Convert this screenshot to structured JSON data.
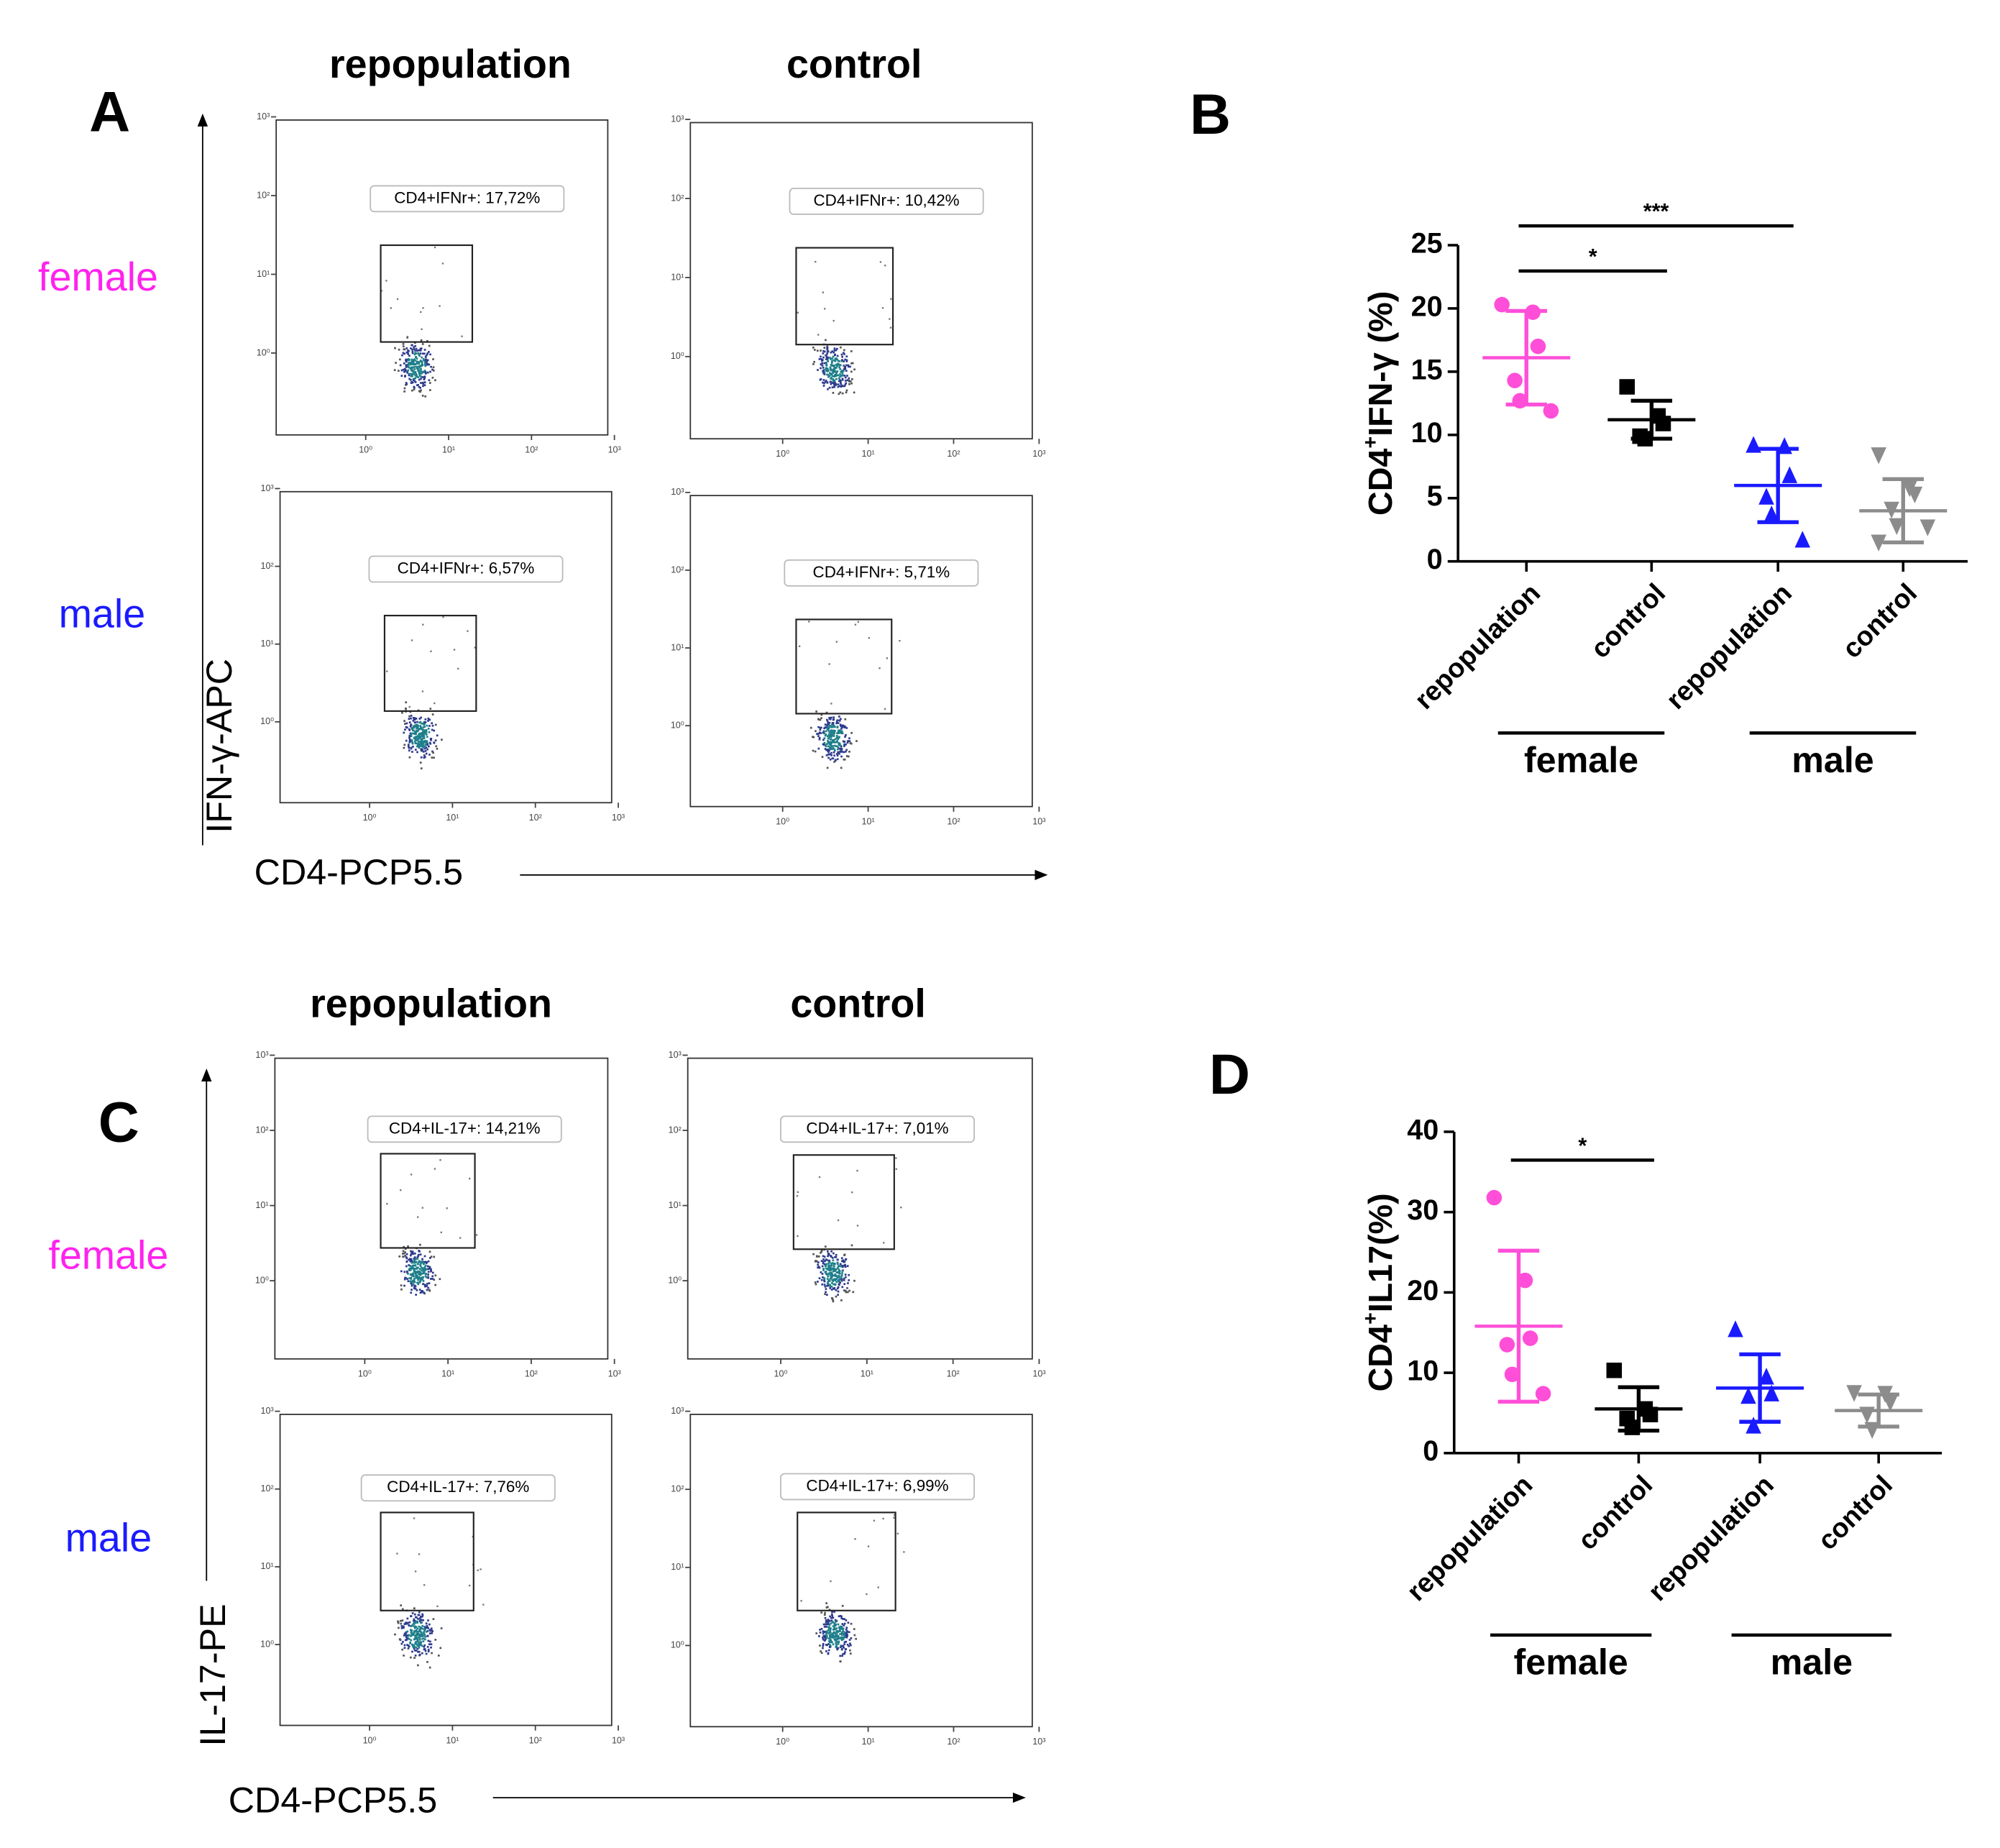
{
  "flow_panels": [
    {
      "letter": "A",
      "col_titles": [
        "repopulation",
        "control"
      ],
      "row_labels": [
        "female",
        "male"
      ],
      "row_colors": [
        "#ff22ee",
        "#1a1aff"
      ],
      "y_axis": "IFN-γ-APC",
      "x_axis": "CD4-PCP5.5",
      "gates": [
        [
          "CD4+IFNr+: 17,72%",
          "CD4+IFNr+: 10,42%"
        ],
        [
          "CD4+IFNr+: 6,57%",
          "CD4+IFNr+: 5,71%"
        ]
      ],
      "log_ticks": [
        "10⁰",
        "10¹",
        "10²",
        "10³"
      ]
    },
    {
      "letter": "C",
      "col_titles": [
        "repopulation",
        "control"
      ],
      "row_labels": [
        "female",
        "male"
      ],
      "row_colors": [
        "#ff22ee",
        "#1a1aff"
      ],
      "y_axis": "IL-17-PE",
      "x_axis": "CD4-PCP5.5",
      "gates": [
        [
          "CD4+IL-17+: 14,21%",
          "CD4+IL-17+: 7,01%"
        ],
        [
          "CD4+IL-17+: 7,76%",
          "CD4+IL-17+: 6,99%"
        ]
      ],
      "log_ticks": [
        "10⁰",
        "10¹",
        "10²",
        "10³"
      ]
    }
  ],
  "chart_data": [
    {
      "type": "dotplot",
      "letter": "B",
      "ylabel": [
        "CD4",
        "+",
        "IFN-γ (%)"
      ],
      "categories": [
        "repopulation",
        "control",
        "repopulation",
        "control"
      ],
      "groups": [
        "female",
        "male"
      ],
      "colors": [
        "#ff4fd8",
        "#000000",
        "#1a1aff",
        "#8c8c8c"
      ],
      "markers": [
        "circle",
        "square",
        "triangle",
        "triangle-down"
      ],
      "points": [
        [
          20.3,
          19.7,
          17.0,
          14.3,
          12.7,
          11.9
        ],
        [
          13.8,
          11.5,
          10.9,
          9.9,
          9.7
        ],
        [
          9.2,
          9.1,
          6.8,
          5.1,
          3.7,
          1.7
        ],
        [
          8.4,
          5.8,
          5.3,
          4.1,
          2.8,
          2.7,
          1.5
        ]
      ],
      "means": [
        16.1,
        11.2,
        6.0,
        4.0
      ],
      "sd": [
        3.7,
        1.5,
        2.9,
        2.5
      ],
      "significance": [
        {
          "from": 0,
          "to": 1,
          "label": "*"
        },
        {
          "from": 0,
          "to": 2,
          "label": "***"
        }
      ],
      "ylim": [
        0,
        25
      ],
      "yticks": [
        0,
        5,
        10,
        15,
        20,
        25
      ]
    },
    {
      "type": "dotplot",
      "letter": "D",
      "ylabel": [
        "CD4",
        "+",
        "IL17(%)"
      ],
      "categories": [
        "repopulation",
        "control",
        "repopulation",
        "control"
      ],
      "groups": [
        "female",
        "male"
      ],
      "colors": [
        "#ff4fd8",
        "#000000",
        "#1a1aff",
        "#8c8c8c"
      ],
      "markers": [
        "circle",
        "square",
        "triangle",
        "triangle-down"
      ],
      "points": [
        [
          31.8,
          21.5,
          14.3,
          13.5,
          9.8,
          7.4
        ],
        [
          10.3,
          5.5,
          4.8,
          4.3,
          3.2
        ],
        [
          15.4,
          9.5,
          7.4,
          7.1,
          3.4
        ],
        [
          7.5,
          7.4,
          6.3,
          4.8,
          2.9
        ]
      ],
      "means": [
        15.8,
        5.5,
        8.1,
        5.3
      ],
      "sd": [
        9.4,
        2.7,
        4.2,
        2.0
      ],
      "significance": [
        {
          "from": 0,
          "to": 1,
          "label": "*"
        }
      ],
      "ylim": [
        0,
        40
      ],
      "yticks": [
        0,
        10,
        20,
        30,
        40
      ]
    }
  ]
}
